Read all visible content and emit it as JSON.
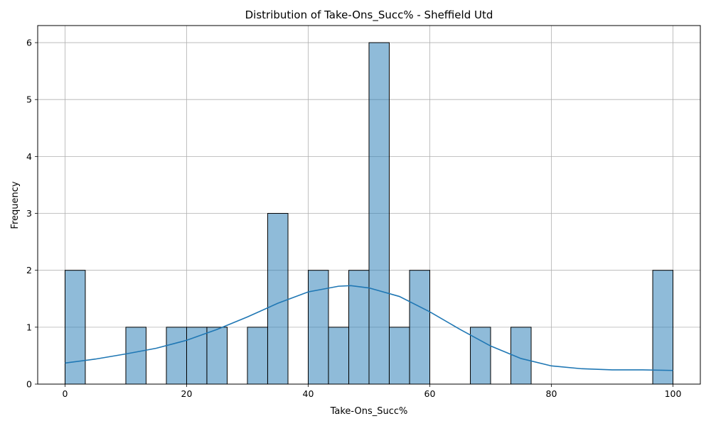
{
  "chart_data": {
    "type": "bar",
    "title": "Distribution of Take-Ons_Succ% - Sheffield Utd",
    "xlabel": "Take-Ons_Succ%",
    "ylabel": "Frequency",
    "xlim": [
      -4.5,
      104.5
    ],
    "ylim": [
      0,
      6.3
    ],
    "x_ticks": [
      0,
      20,
      40,
      60,
      80,
      100
    ],
    "y_ticks": [
      0,
      1,
      2,
      3,
      4,
      5,
      6
    ],
    "grid": true,
    "bar_color": "#1f77b4",
    "bar_alpha": 0.5,
    "kde_color": "#1f77b4",
    "bins": [
      {
        "x0": 0.0,
        "x1": 3.33,
        "count": 2
      },
      {
        "x0": 10.0,
        "x1": 13.33,
        "count": 1
      },
      {
        "x0": 16.67,
        "x1": 20.0,
        "count": 1
      },
      {
        "x0": 20.0,
        "x1": 23.33,
        "count": 1
      },
      {
        "x0": 23.33,
        "x1": 26.67,
        "count": 1
      },
      {
        "x0": 30.0,
        "x1": 33.33,
        "count": 1
      },
      {
        "x0": 33.33,
        "x1": 36.67,
        "count": 3
      },
      {
        "x0": 40.0,
        "x1": 43.33,
        "count": 2
      },
      {
        "x0": 43.33,
        "x1": 46.67,
        "count": 1
      },
      {
        "x0": 46.67,
        "x1": 50.0,
        "count": 2
      },
      {
        "x0": 50.0,
        "x1": 53.33,
        "count": 6
      },
      {
        "x0": 53.33,
        "x1": 56.67,
        "count": 1
      },
      {
        "x0": 56.67,
        "x1": 60.0,
        "count": 2
      },
      {
        "x0": 66.67,
        "x1": 70.0,
        "count": 1
      },
      {
        "x0": 73.33,
        "x1": 76.67,
        "count": 1
      },
      {
        "x0": 96.67,
        "x1": 100.0,
        "count": 2
      }
    ],
    "kde": [
      [
        0,
        0.37
      ],
      [
        5,
        0.44
      ],
      [
        10,
        0.53
      ],
      [
        15,
        0.63
      ],
      [
        20,
        0.77
      ],
      [
        25,
        0.96
      ],
      [
        30,
        1.18
      ],
      [
        35,
        1.42
      ],
      [
        40,
        1.62
      ],
      [
        45,
        1.72
      ],
      [
        47,
        1.73
      ],
      [
        50,
        1.69
      ],
      [
        55,
        1.54
      ],
      [
        60,
        1.27
      ],
      [
        65,
        0.96
      ],
      [
        70,
        0.67
      ],
      [
        75,
        0.45
      ],
      [
        80,
        0.32
      ],
      [
        85,
        0.27
      ],
      [
        90,
        0.25
      ],
      [
        95,
        0.25
      ],
      [
        100,
        0.24
      ]
    ]
  }
}
